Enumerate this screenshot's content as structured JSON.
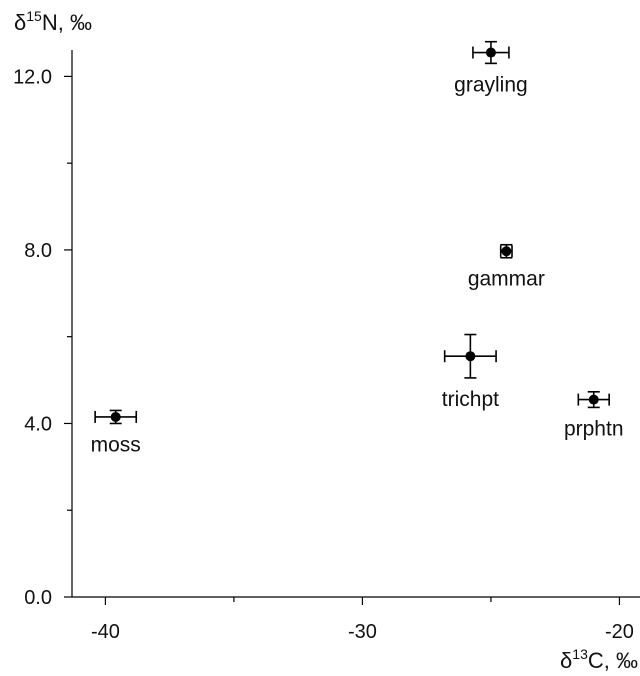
{
  "chart_data": {
    "type": "scatter",
    "title": "",
    "xlabel": "C, ‰",
    "xlabel_symbol": "δ",
    "xlabel_sup": "13",
    "ylabel": "N, ‰",
    "ylabel_symbol": "δ",
    "ylabel_sup": "15",
    "xlim": [
      -41.3,
      -19.2
    ],
    "ylim": [
      0,
      13.3
    ],
    "x_ticks_major": [
      -40,
      -30,
      -20
    ],
    "x_tick_labels": [
      "-40",
      "-30",
      "-20"
    ],
    "x_ticks_minor": [
      -35,
      -25
    ],
    "y_ticks_major": [
      0,
      4,
      8,
      12
    ],
    "y_tick_labels": [
      "0.0",
      "4.0",
      "8.0",
      "12.0"
    ],
    "y_ticks_minor": [
      2,
      6,
      10
    ],
    "grid": false,
    "points": [
      {
        "label": "grayling",
        "x": -25.0,
        "y": 12.55,
        "xerr": 0.7,
        "yerr": 0.25,
        "label_position": "below"
      },
      {
        "label": "gammar",
        "x": -24.4,
        "y": 7.97,
        "xerr": 0.22,
        "yerr": 0.15,
        "label_position": "below"
      },
      {
        "label": "trichpt",
        "x": -25.8,
        "y": 5.55,
        "xerr": 1.0,
        "yerr": 0.5,
        "label_position": "below"
      },
      {
        "label": "prphtn",
        "x": -21.0,
        "y": 4.55,
        "xerr": 0.6,
        "yerr": 0.18,
        "label_position": "below"
      },
      {
        "label": "moss",
        "x": -39.6,
        "y": 4.15,
        "xerr": 0.8,
        "yerr": 0.15,
        "label_position": "below"
      }
    ]
  }
}
